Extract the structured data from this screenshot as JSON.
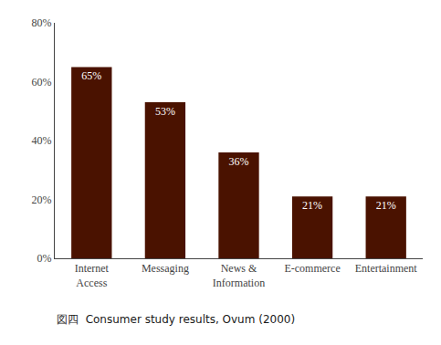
{
  "chart_data": {
    "type": "bar",
    "categories": [
      "Internet\nAccess",
      "Messaging",
      "News &\nInformation",
      "E-commerce",
      "Entertainment"
    ],
    "values": [
      65,
      53,
      36,
      21,
      21
    ],
    "value_labels": [
      "65%",
      "53%",
      "36%",
      "21%",
      "21%"
    ],
    "data_labels": true,
    "color": "#4a1200",
    "ylim": [
      0,
      80
    ],
    "yticks": [
      {
        "value": 0,
        "label": "0%"
      },
      {
        "value": 20,
        "label": "20%"
      },
      {
        "value": 40,
        "label": "40%"
      },
      {
        "value": 60,
        "label": "60%"
      },
      {
        "value": 80,
        "label": "80%"
      }
    ],
    "grid": false,
    "annotations": [
      "図四  Consumer study results, Ovum (2000)"
    ]
  }
}
